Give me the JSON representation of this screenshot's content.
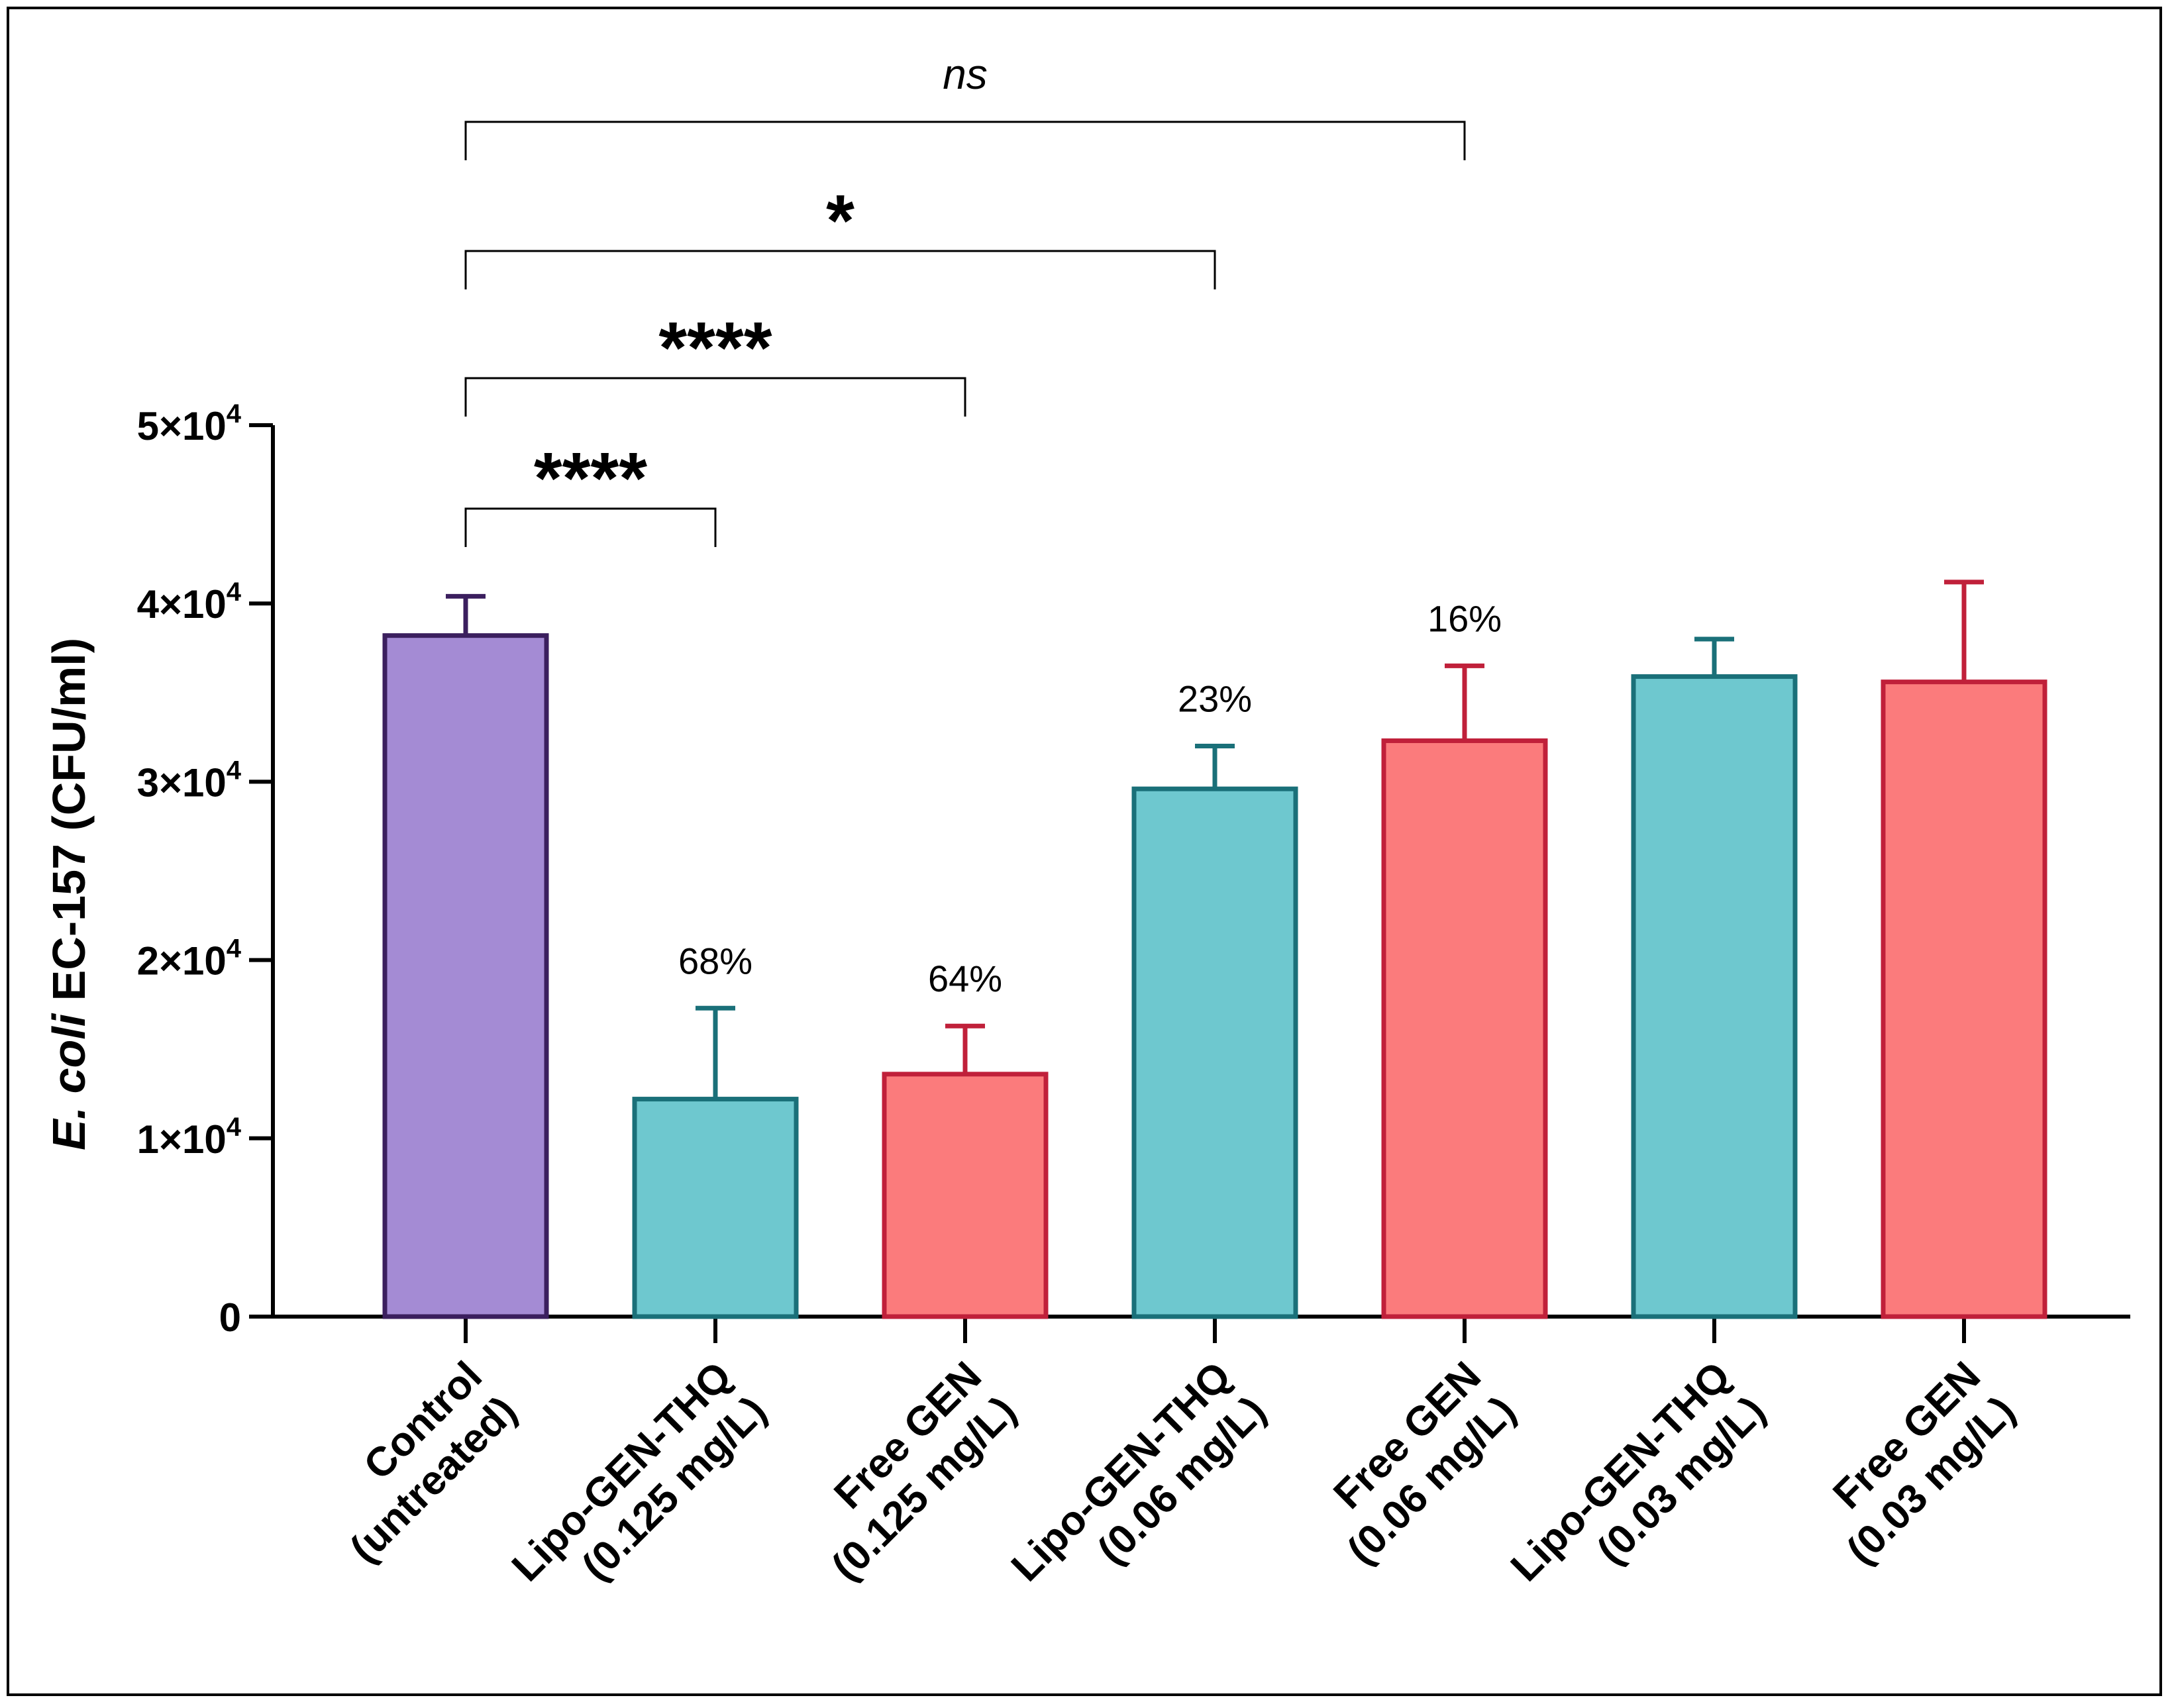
{
  "chart_data": {
    "type": "bar",
    "title": "",
    "ylabel": {
      "italic": "E. coli",
      "rest": " EC-157 (CFU/ml)"
    },
    "xlabel": "",
    "ylim": [
      0,
      50000
    ],
    "yticks": [
      {
        "value": 0,
        "label": "0"
      },
      {
        "value": 10000,
        "label": "1×10",
        "exp": "4"
      },
      {
        "value": 20000,
        "label": "2×10",
        "exp": "4"
      },
      {
        "value": 30000,
        "label": "3×10",
        "exp": "4"
      },
      {
        "value": 40000,
        "label": "4×10",
        "exp": "4"
      },
      {
        "value": 50000,
        "label": "5×10",
        "exp": "4"
      }
    ],
    "categories": [
      [
        "Control",
        "(untreated)"
      ],
      [
        "Lipo-GEN-THQ",
        "(0.125 mg/L)"
      ],
      [
        "Free GEN",
        "(0.125 mg/L)"
      ],
      [
        "Lipo-GEN-THQ",
        "(0.06 mg/L)"
      ],
      [
        "Free GEN",
        "(0.06 mg/L)"
      ],
      [
        "Lipo-GEN-THQ",
        "(0.03 mg/L)"
      ],
      [
        "Free GEN",
        "(0.03 mg/L)"
      ]
    ],
    "values": [
      38200,
      12200,
      13600,
      29600,
      32300,
      35900,
      35600
    ],
    "errors": [
      2200,
      5100,
      2700,
      2400,
      4200,
      2100,
      5600
    ],
    "bar_colors": [
      {
        "fill": "#a48bd4",
        "stroke": "#3b1f5e"
      },
      {
        "fill": "#6ec8cf",
        "stroke": "#1a7079"
      },
      {
        "fill": "#fb7b7c",
        "stroke": "#c0203a"
      },
      {
        "fill": "#6ec8cf",
        "stroke": "#1a7079"
      },
      {
        "fill": "#fb7b7c",
        "stroke": "#c0203a"
      },
      {
        "fill": "#6ec8cf",
        "stroke": "#1a7079"
      },
      {
        "fill": "#fb7b7c",
        "stroke": "#c0203a"
      }
    ],
    "annotations": [
      {
        "index": 1,
        "text": "68%"
      },
      {
        "index": 2,
        "text": "64%"
      },
      {
        "index": 3,
        "text": "23%"
      },
      {
        "index": 4,
        "text": "16%"
      }
    ],
    "significance": [
      {
        "from": 0,
        "to": 1,
        "label": "****"
      },
      {
        "from": 0,
        "to": 2,
        "label": "****"
      },
      {
        "from": 0,
        "to": 3,
        "label": "*"
      },
      {
        "from": 0,
        "to": 4,
        "label": "ns"
      }
    ]
  }
}
